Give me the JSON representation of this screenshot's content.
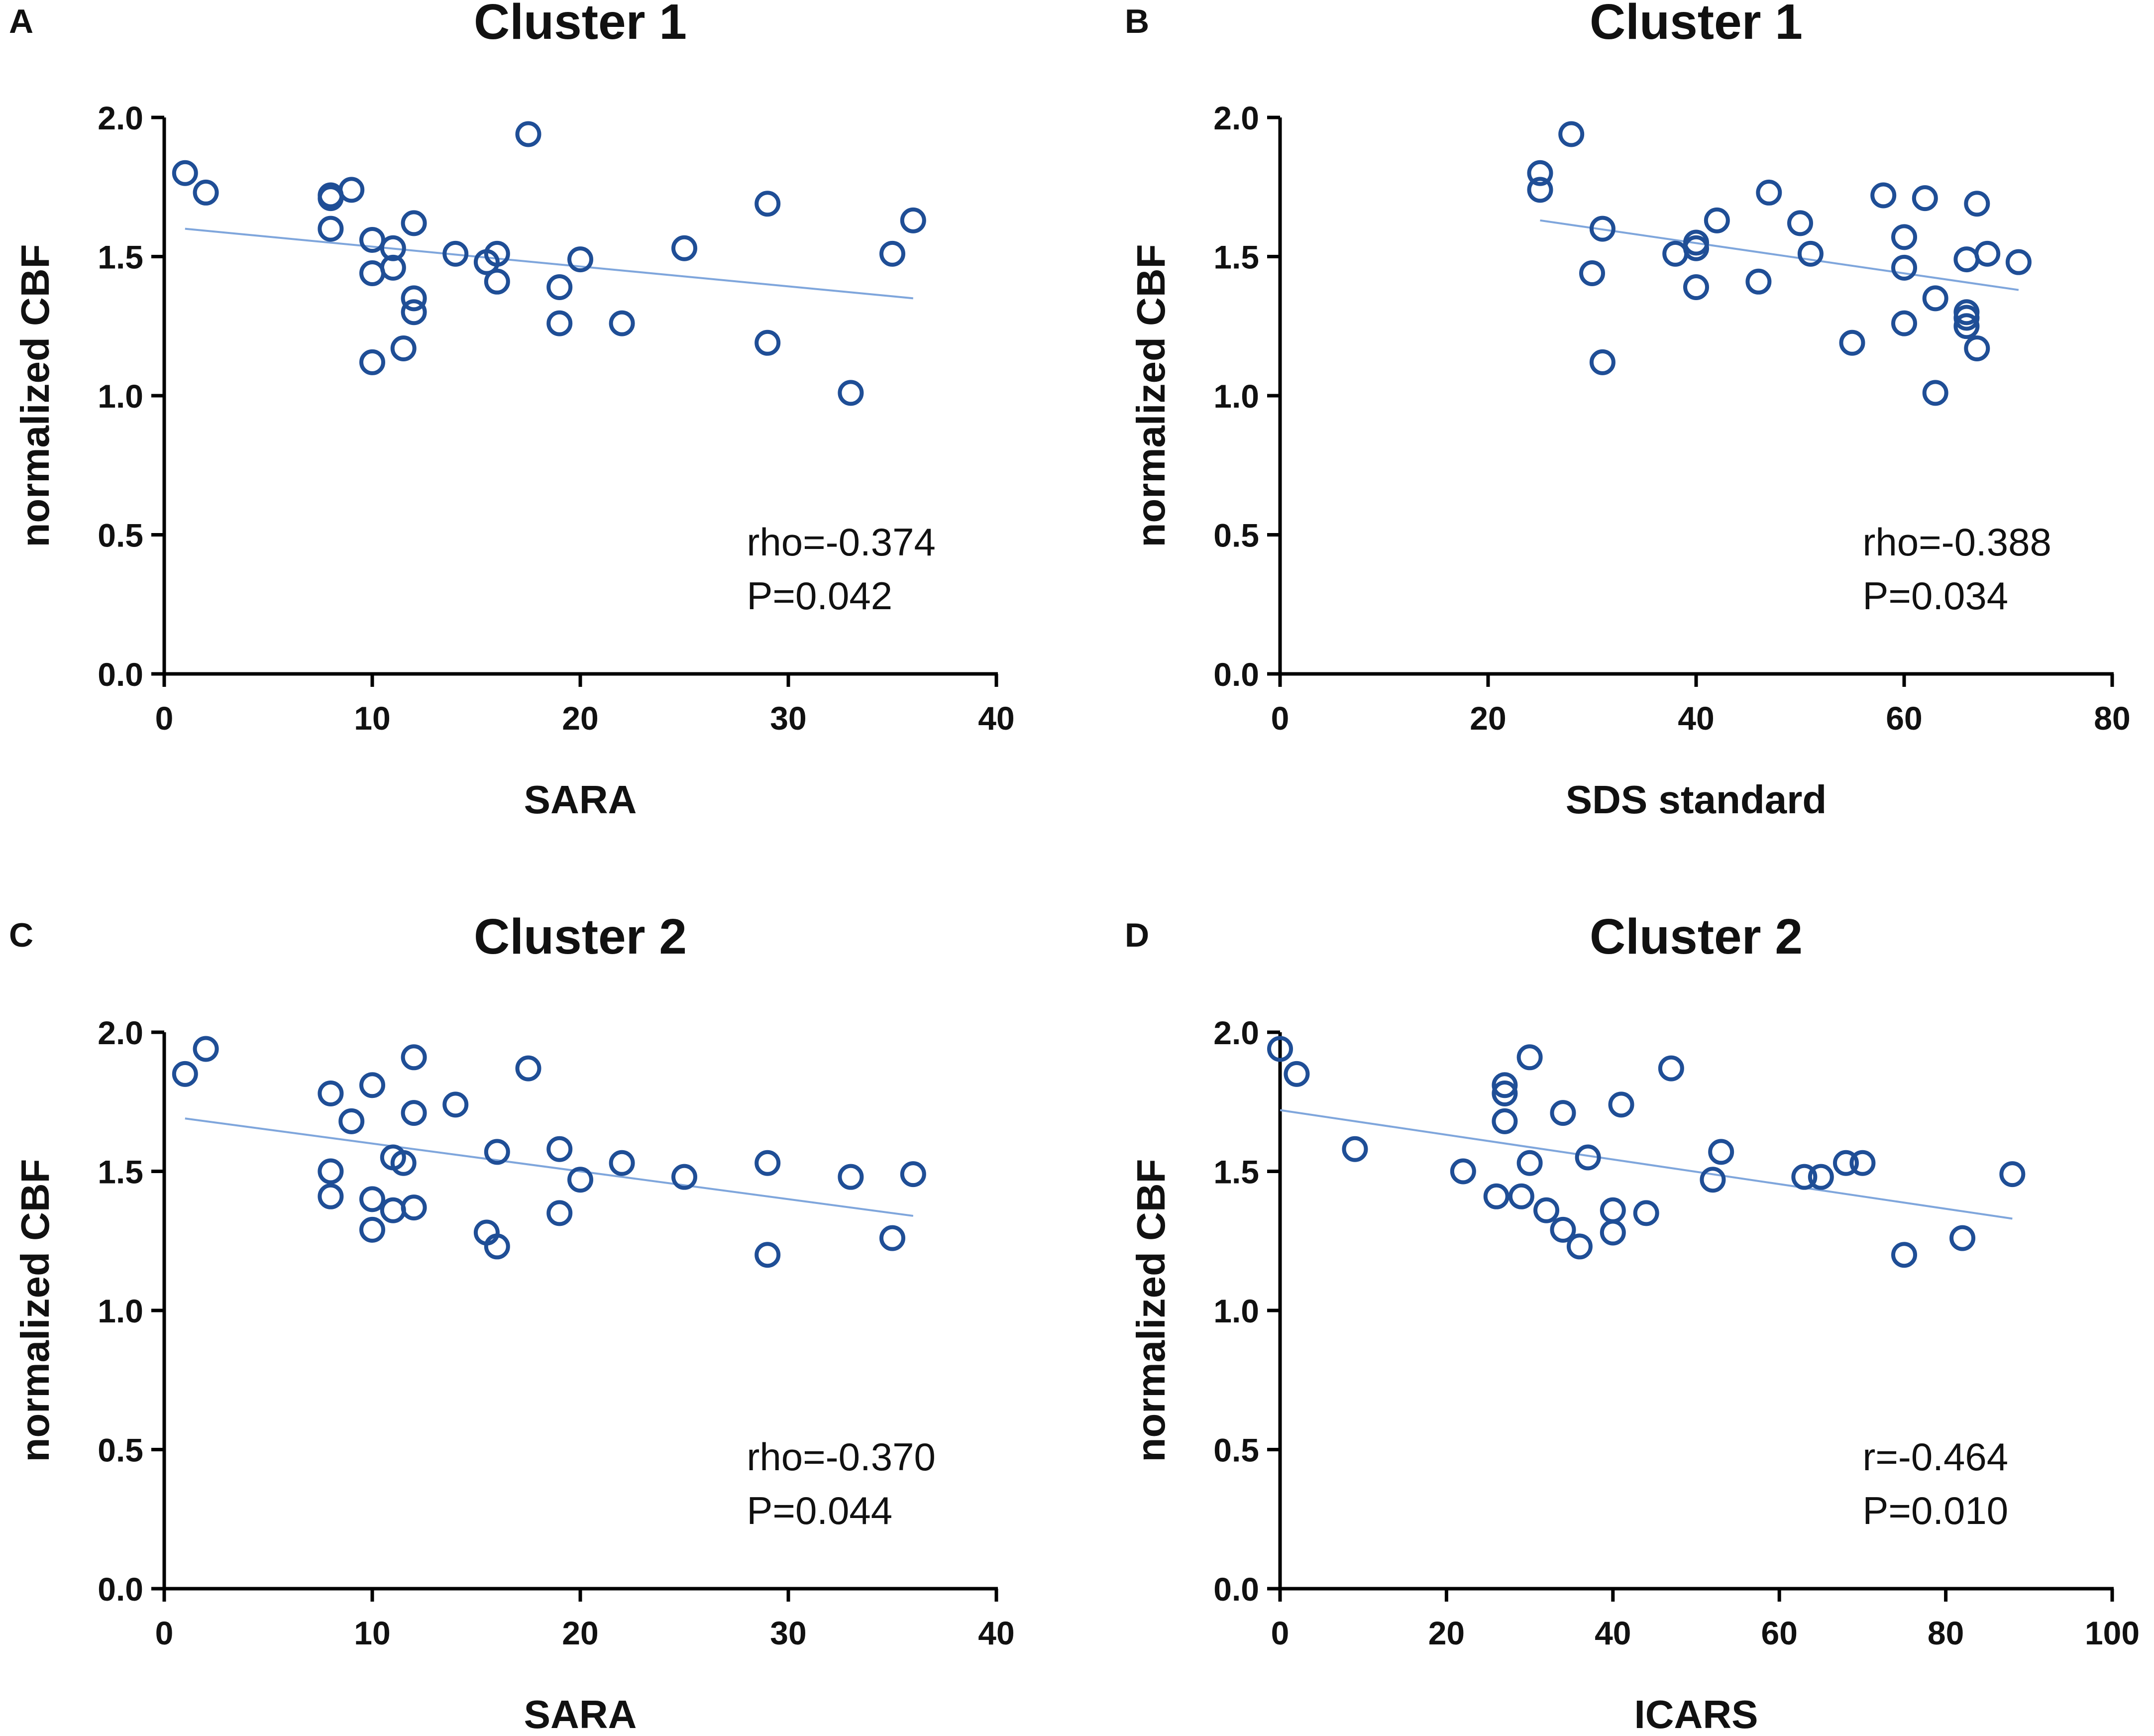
{
  "colors": {
    "point_stroke": "#1F4E96",
    "fit_line": "#7FA6DC",
    "axis": "#000000"
  },
  "chart_data": [
    {
      "panel": "A",
      "type": "scatter",
      "title": "Cluster 1",
      "xlabel": "SARA",
      "ylabel": "normalized CBF",
      "xlim": [
        0,
        40
      ],
      "ylim": [
        0.0,
        2.0
      ],
      "xticks": [
        0,
        10,
        20,
        30,
        40
      ],
      "yticks": [
        0.0,
        0.5,
        1.0,
        1.5,
        2.0
      ],
      "x": [
        1,
        2,
        8,
        8,
        8,
        9,
        10,
        10,
        10,
        11,
        11,
        11.5,
        12,
        12,
        12,
        14,
        15.5,
        16,
        16,
        17.5,
        19,
        19,
        20,
        22,
        25,
        29,
        29,
        33,
        35,
        36
      ],
      "y": [
        1.8,
        1.73,
        1.72,
        1.71,
        1.6,
        1.74,
        1.56,
        1.44,
        1.12,
        1.53,
        1.46,
        1.17,
        1.62,
        1.35,
        1.3,
        1.51,
        1.48,
        1.51,
        1.41,
        1.94,
        1.39,
        1.26,
        1.49,
        1.26,
        1.53,
        1.69,
        1.19,
        1.01,
        1.51,
        1.63
      ],
      "fit_line": {
        "x": [
          1,
          36
        ],
        "y": [
          1.6,
          1.35
        ]
      },
      "stats": [
        "rho=-0.374",
        "P=0.042"
      ]
    },
    {
      "panel": "B",
      "type": "scatter",
      "title": "Cluster 1",
      "xlabel": "SDS standard",
      "ylabel": "normalized CBF",
      "xlim": [
        0,
        80
      ],
      "ylim": [
        0.0,
        2.0
      ],
      "xticks": [
        0,
        20,
        40,
        60,
        80
      ],
      "yticks": [
        0.0,
        0.5,
        1.0,
        1.5,
        2.0
      ],
      "x": [
        25,
        25,
        28,
        30,
        31,
        31,
        38,
        40,
        40,
        40,
        42,
        46,
        47,
        50,
        51,
        55,
        58,
        60,
        60,
        60,
        62,
        63,
        63,
        66,
        66,
        66,
        66,
        67,
        67,
        68,
        71
      ],
      "y": [
        1.8,
        1.74,
        1.94,
        1.44,
        1.6,
        1.12,
        1.51,
        1.55,
        1.53,
        1.39,
        1.63,
        1.41,
        1.73,
        1.62,
        1.51,
        1.19,
        1.72,
        1.57,
        1.46,
        1.26,
        1.71,
        1.35,
        1.01,
        1.49,
        1.3,
        1.28,
        1.25,
        1.69,
        1.17,
        1.51,
        1.48
      ],
      "fit_line": {
        "x": [
          25,
          71
        ],
        "y": [
          1.63,
          1.38
        ]
      },
      "stats": [
        "rho=-0.388",
        "P=0.034"
      ]
    },
    {
      "panel": "C",
      "type": "scatter",
      "title": "Cluster 2",
      "xlabel": "SARA",
      "ylabel": "normalized CBF",
      "xlim": [
        0,
        40
      ],
      "ylim": [
        0.0,
        2.0
      ],
      "xticks": [
        0,
        10,
        20,
        30,
        40
      ],
      "yticks": [
        0.0,
        0.5,
        1.0,
        1.5,
        2.0
      ],
      "x": [
        1,
        2,
        8,
        8,
        8,
        9,
        10,
        10,
        10,
        11,
        11,
        11.5,
        12,
        12,
        12,
        14,
        15.5,
        16,
        16,
        17.5,
        19,
        19,
        20,
        22,
        25,
        29,
        29,
        33,
        35,
        36
      ],
      "y": [
        1.85,
        1.94,
        1.78,
        1.5,
        1.41,
        1.68,
        1.81,
        1.4,
        1.29,
        1.55,
        1.36,
        1.53,
        1.91,
        1.71,
        1.37,
        1.74,
        1.28,
        1.57,
        1.23,
        1.87,
        1.58,
        1.35,
        1.47,
        1.53,
        1.48,
        1.53,
        1.2,
        1.48,
        1.26,
        1.49
      ],
      "fit_line": {
        "x": [
          1,
          36
        ],
        "y": [
          1.69,
          1.34
        ]
      },
      "stats": [
        "rho=-0.370",
        "P=0.044"
      ]
    },
    {
      "panel": "D",
      "type": "scatter",
      "title": "Cluster 2",
      "xlabel": "ICARS",
      "ylabel": "normalized CBF",
      "xlim": [
        0,
        100
      ],
      "ylim": [
        0.0,
        2.0
      ],
      "xticks": [
        0,
        20,
        40,
        60,
        80,
        100
      ],
      "yticks": [
        0.0,
        0.5,
        1.0,
        1.5,
        2.0
      ],
      "x": [
        0,
        2,
        9,
        22,
        26,
        27,
        27,
        27,
        29,
        30,
        30,
        32,
        34,
        34,
        36,
        37,
        40,
        40,
        41,
        44,
        47,
        52,
        53,
        63,
        65,
        68,
        70,
        75,
        82,
        88
      ],
      "y": [
        1.94,
        1.85,
        1.58,
        1.5,
        1.41,
        1.81,
        1.78,
        1.68,
        1.41,
        1.91,
        1.53,
        1.36,
        1.71,
        1.29,
        1.23,
        1.55,
        1.36,
        1.28,
        1.74,
        1.35,
        1.87,
        1.47,
        1.57,
        1.48,
        1.48,
        1.53,
        1.53,
        1.2,
        1.26,
        1.49
      ],
      "fit_line": {
        "x": [
          0,
          88
        ],
        "y": [
          1.72,
          1.33
        ]
      },
      "stats": [
        "r=-0.464",
        "P=0.010"
      ]
    }
  ]
}
